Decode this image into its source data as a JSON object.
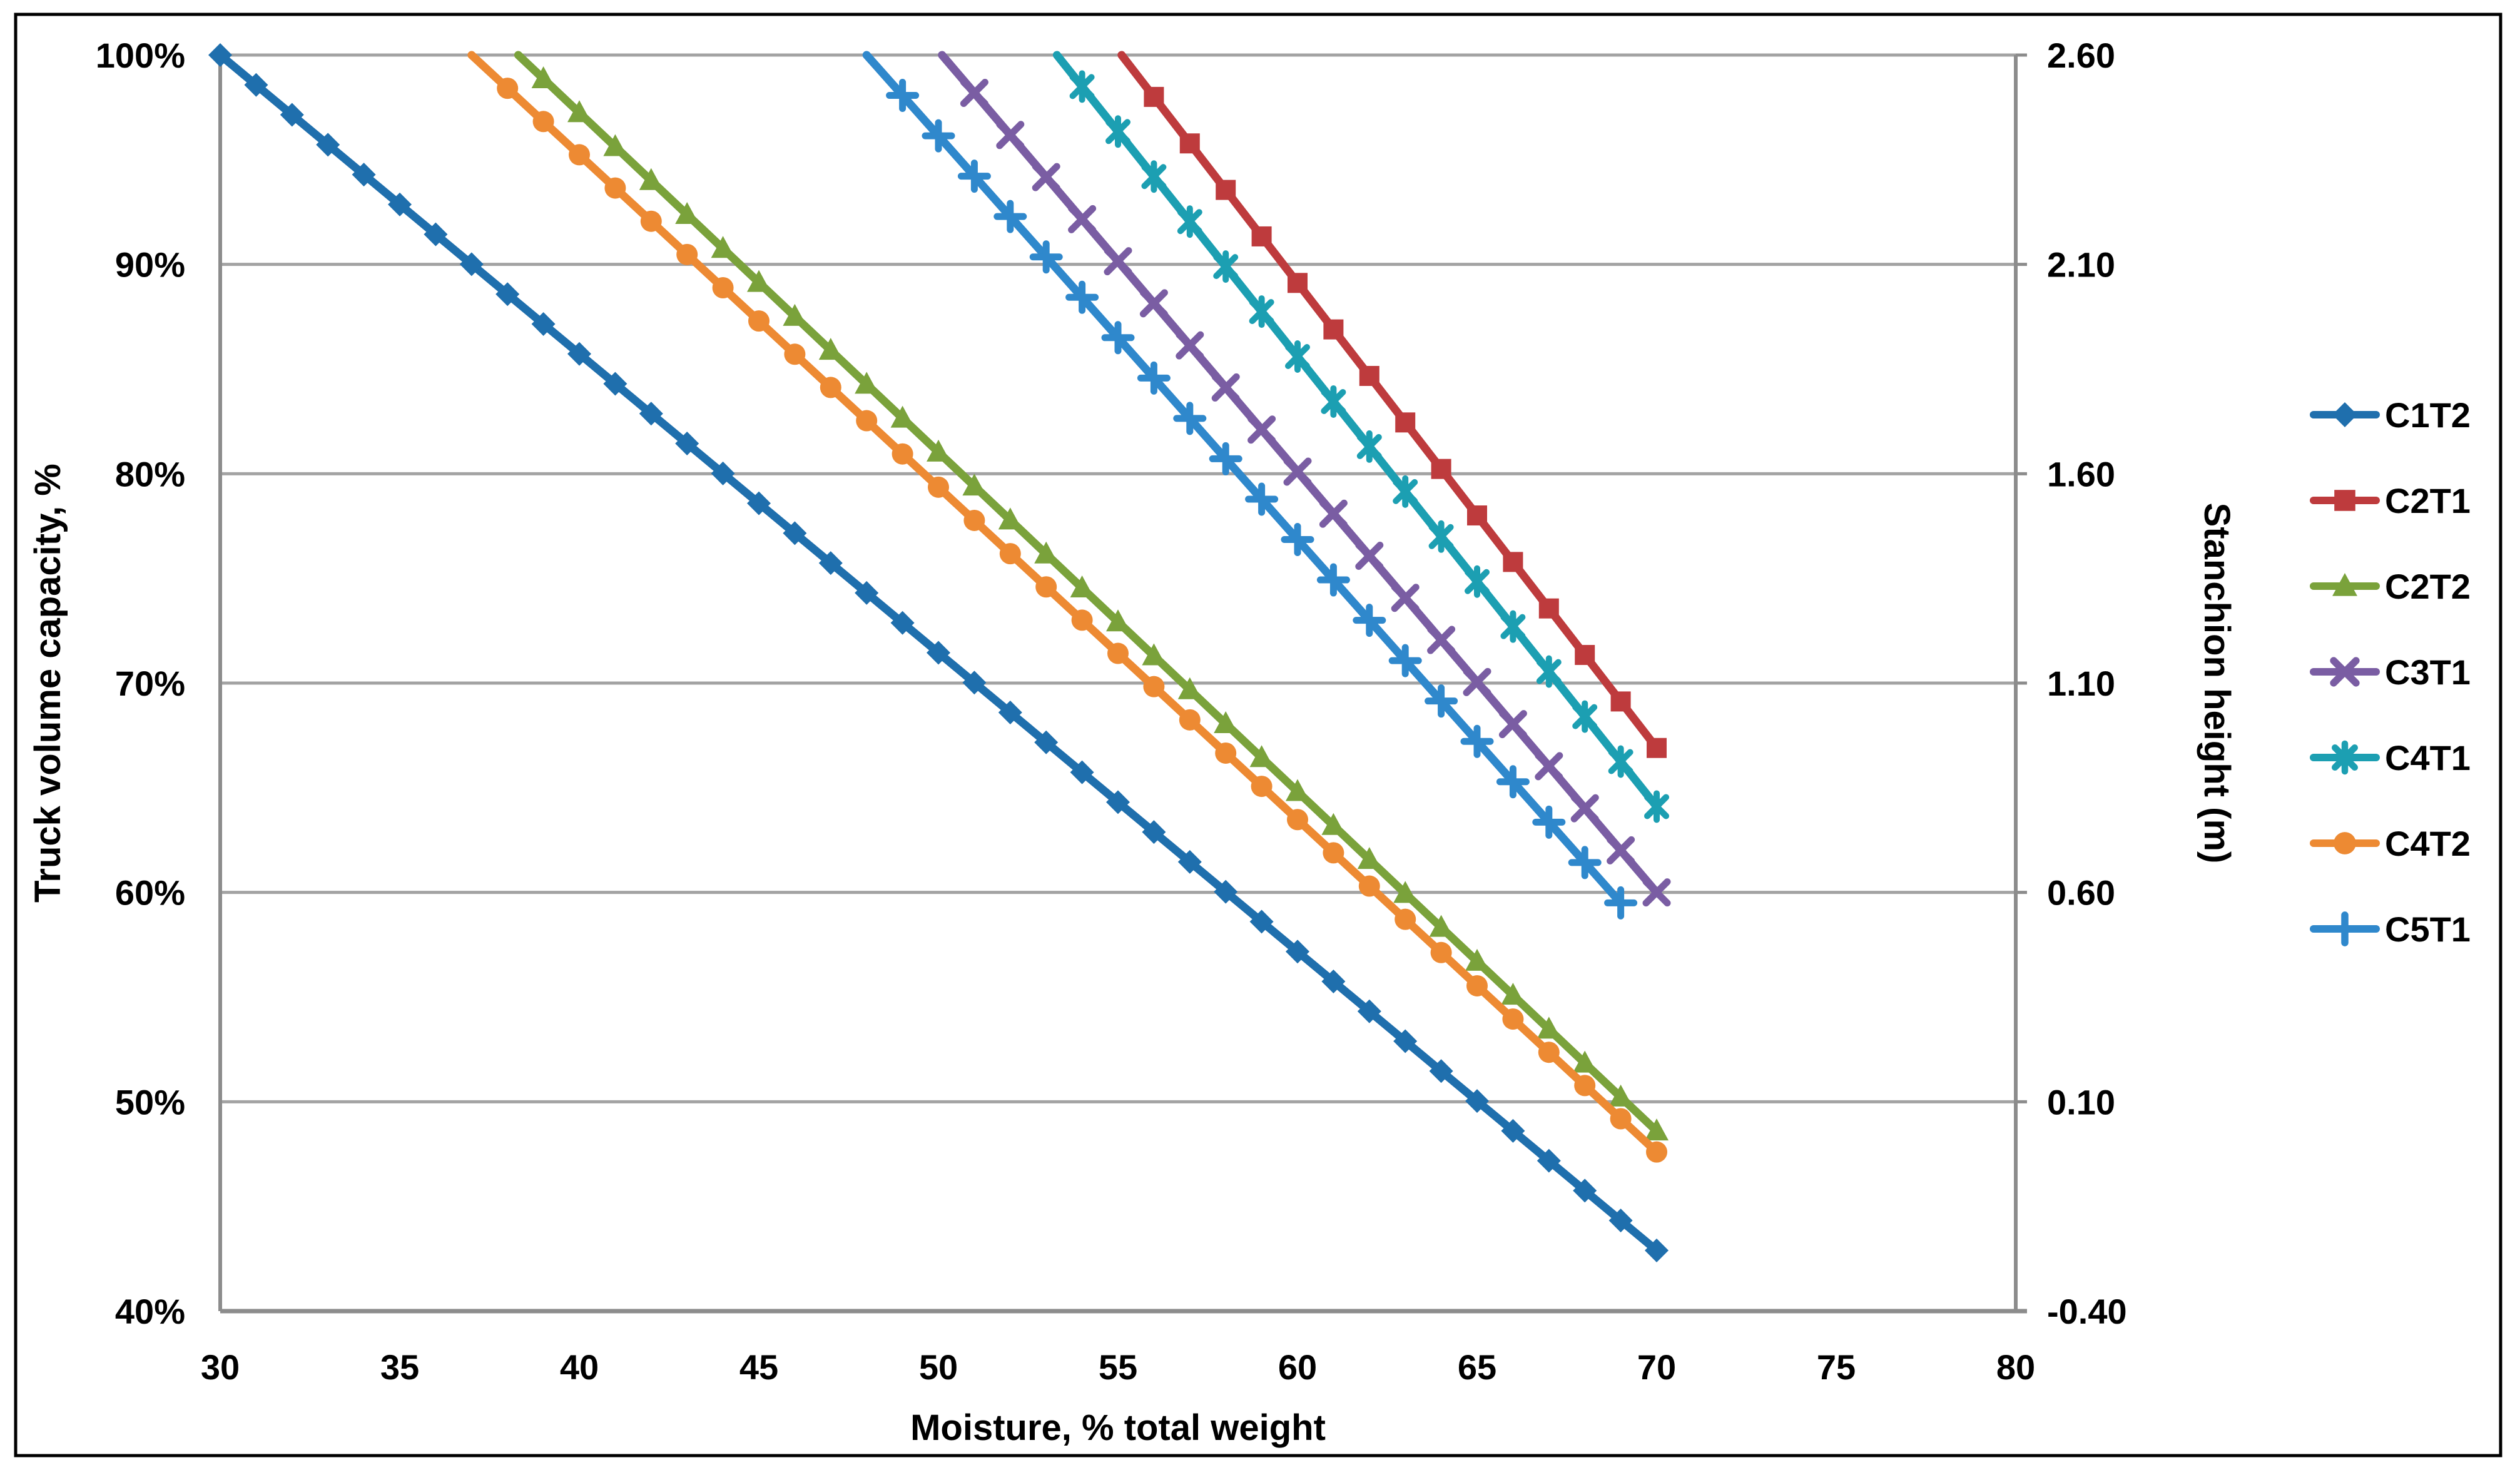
{
  "chart_data": {
    "type": "line",
    "title": "",
    "xlabel": "Moisture, % total weight",
    "ylabel_left": "Truck volume capacity, %",
    "ylabel_right": "Stanchion height (m)",
    "xlim": [
      30,
      80
    ],
    "x_ticks": [
      30,
      35,
      40,
      45,
      50,
      55,
      60,
      65,
      70,
      75,
      80
    ],
    "ylim_left": [
      40,
      100
    ],
    "y_left_tick_values": [
      100,
      90,
      80,
      70,
      60,
      50,
      40
    ],
    "y_left_tick_labels": [
      "100%",
      "90%",
      "80%",
      "70%",
      "60%",
      "50%",
      "40%"
    ],
    "ylim_right": [
      -0.4,
      2.6
    ],
    "y_right_tick_labels": [
      "2.60",
      "2.10",
      "1.60",
      "1.10",
      "0.60",
      "0.10",
      "-0.40"
    ],
    "grid": "horizontal",
    "legend_position": "right",
    "series": [
      {
        "name": "C1T2",
        "color": "#1F6FAD",
        "marker": "diamond",
        "line": {
          "x_start": 30.0,
          "pct_start": 100.0,
          "x_end": 70.0,
          "pct_end": 42.9
        },
        "marker_x_first": 30,
        "marker_x_last": 70,
        "marker_x_step": 1
      },
      {
        "name": "C2T1",
        "color": "#BE3B3D",
        "marker": "square",
        "line": {
          "x_start": 55.1,
          "pct_start": 100.0,
          "x_end": 70.0,
          "pct_end": 66.9
        },
        "marker_x_first": 56,
        "marker_x_last": 70,
        "marker_x_step": 1
      },
      {
        "name": "C2T2",
        "color": "#7AA23B",
        "marker": "triangle",
        "line": {
          "x_start": 38.3,
          "pct_start": 100.0,
          "x_end": 70.0,
          "pct_end": 48.6
        },
        "marker_x_first": 39,
        "marker_x_last": 70,
        "marker_x_step": 1
      },
      {
        "name": "C3T1",
        "color": "#7A5DA3",
        "marker": "x",
        "line": {
          "x_start": 50.1,
          "pct_start": 100.0,
          "x_end": 70.0,
          "pct_end": 60.0
        },
        "marker_x_first": 51,
        "marker_x_last": 70,
        "marker_x_step": 1
      },
      {
        "name": "C4T1",
        "color": "#1C9FB2",
        "marker": "asterisk",
        "line": {
          "x_start": 53.3,
          "pct_start": 100.0,
          "x_end": 70.0,
          "pct_end": 64.1
        },
        "marker_x_first": 54,
        "marker_x_last": 70,
        "marker_x_step": 1
      },
      {
        "name": "C4T2",
        "color": "#ED8A33",
        "marker": "circle",
        "line": {
          "x_start": 37.0,
          "pct_start": 100.0,
          "x_end": 70.0,
          "pct_end": 47.6
        },
        "marker_x_first": 38,
        "marker_x_last": 70,
        "marker_x_step": 1
      },
      {
        "name": "C5T1",
        "color": "#2F88CC",
        "marker": "plus",
        "line": {
          "x_start": 48.0,
          "pct_start": 100.0,
          "x_end": 69.0,
          "pct_end": 59.5
        },
        "marker_x_first": 49,
        "marker_x_last": 69,
        "marker_x_step": 1
      }
    ]
  },
  "styles": {
    "gridline_color": "#A3A3A3",
    "axis_color": "#8C8C8C",
    "border_color": "#000000",
    "text_color": "#000000",
    "background": "#FFFFFF"
  }
}
